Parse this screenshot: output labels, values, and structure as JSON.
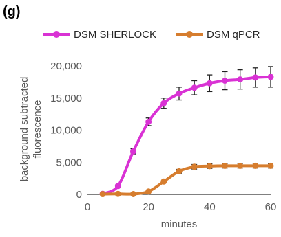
{
  "panel_label": "(g)",
  "chart_data": {
    "type": "line",
    "title": "",
    "xlabel": "minutes",
    "ylabel_lines": [
      "background subtracted",
      "fluorescence"
    ],
    "xlim": [
      0,
      60
    ],
    "ylim": [
      0,
      20000
    ],
    "xticks": [
      0,
      20,
      40,
      60
    ],
    "xtick_labels": [
      "0",
      "20",
      "40",
      "60"
    ],
    "yticks": [
      0,
      5000,
      10000,
      15000,
      20000
    ],
    "ytick_labels": [
      "0",
      "5,000",
      "10,000",
      "15,000",
      "20,000"
    ],
    "grid": false,
    "legend_position": "top",
    "x": [
      5,
      10,
      15,
      20,
      25,
      30,
      35,
      40,
      45,
      50,
      55,
      60
    ],
    "series": [
      {
        "name": "DSM SHERLOCK",
        "color": "#d932d4",
        "values": [
          100,
          1300,
          6700,
          11300,
          14200,
          15700,
          16600,
          17300,
          17700,
          17900,
          18200,
          18300
        ],
        "error": [
          0,
          200,
          400,
          600,
          800,
          1000,
          1100,
          1300,
          1400,
          1500,
          1500,
          1600
        ]
      },
      {
        "name": "DSM qPCR",
        "color": "#d67d2e",
        "values": [
          50,
          80,
          60,
          450,
          2000,
          3600,
          4300,
          4400,
          4450,
          4450,
          4450,
          4450
        ],
        "error": [
          0,
          0,
          0,
          0,
          0,
          300,
          350,
          350,
          350,
          350,
          350,
          350
        ]
      }
    ]
  }
}
